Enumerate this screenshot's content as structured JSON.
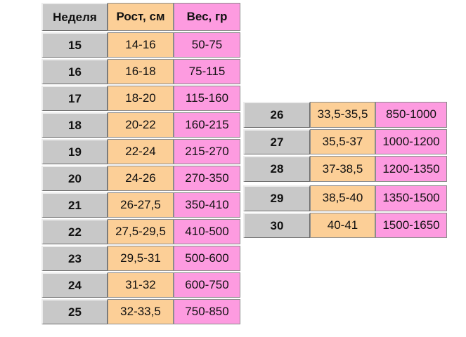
{
  "headers": {
    "week": "Неделя",
    "height": "Рост, см",
    "weight": "Вес, гр"
  },
  "left_rows": [
    {
      "week": "15",
      "height": "14-16",
      "weight": "50-75"
    },
    {
      "week": "16",
      "height": "16-18",
      "weight": "75-115"
    },
    {
      "week": "17",
      "height": "18-20",
      "weight": "115-160"
    },
    {
      "week": "18",
      "height": "20-22",
      "weight": "160-215"
    },
    {
      "week": "19",
      "height": "22-24",
      "weight": "215-270"
    },
    {
      "week": "20",
      "height": "24-26",
      "weight": "270-350"
    },
    {
      "week": "21",
      "height": "26-27,5",
      "weight": "350-410"
    },
    {
      "week": "22",
      "height": "27,5-29,5",
      "weight": "410-500"
    },
    {
      "week": "23",
      "height": "29,5-31",
      "weight": "500-600"
    },
    {
      "week": "24",
      "height": "31-32",
      "weight": "600-750"
    },
    {
      "week": "25",
      "height": "32-33,5",
      "weight": "750-850"
    }
  ],
  "right_rows": [
    {
      "week": "26",
      "height": "33,5-35,5",
      "weight": "850-1000"
    },
    {
      "week": "27",
      "height": "35,5-37",
      "weight": "1000-1200"
    },
    {
      "week": "28",
      "height": "37-38,5",
      "weight": "1200-1350"
    },
    {
      "week": "29",
      "height": "38,5-40",
      "weight": "1350-1500"
    },
    {
      "week": "30",
      "height": "40-41",
      "weight": "1500-1650"
    }
  ],
  "colors": {
    "week_bg": "#c8c8c8",
    "height_bg": "#fccf97",
    "weight_bg": "#fd9be0"
  }
}
